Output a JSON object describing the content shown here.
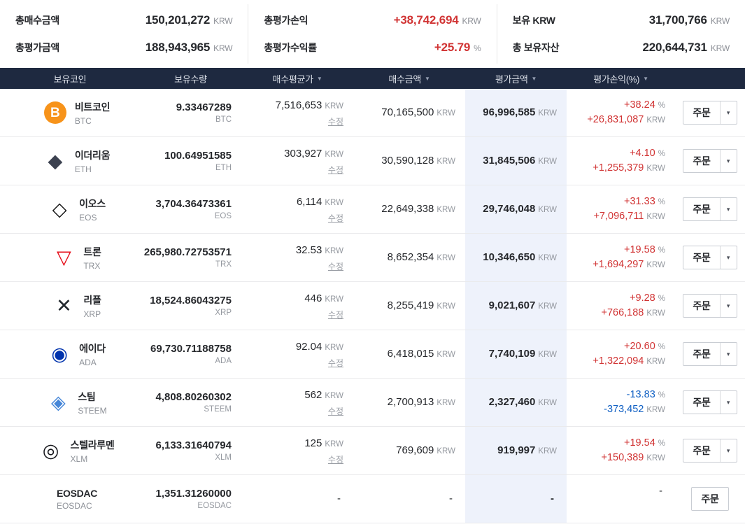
{
  "colors": {
    "profit": "#d13434",
    "loss": "#1261c4",
    "header-bg": "#1e2940",
    "highlight": "#eef2fb"
  },
  "icons": {
    "sort_desc": "▼",
    "order_caret": "▾"
  },
  "summary": {
    "columns": [
      {
        "rows": [
          {
            "label": "총매수금액",
            "value": "150,201,272",
            "unit": "KRW",
            "tone": "normal"
          },
          {
            "label": "총평가금액",
            "value": "188,943,965",
            "unit": "KRW",
            "tone": "normal"
          }
        ]
      },
      {
        "rows": [
          {
            "label": "총평가손익",
            "value": "+38,742,694",
            "unit": "KRW",
            "tone": "profit"
          },
          {
            "label": "총평가수익률",
            "value": "+25.79",
            "unit": "%",
            "tone": "profit"
          }
        ]
      },
      {
        "rows": [
          {
            "label": "보유 KRW",
            "value": "31,700,766",
            "unit": "KRW",
            "tone": "normal"
          },
          {
            "label": "총 보유자산",
            "value": "220,644,731",
            "unit": "KRW",
            "tone": "normal"
          }
        ]
      }
    ]
  },
  "table": {
    "headers": [
      {
        "label": "보유코인",
        "sortable": false
      },
      {
        "label": "보유수량",
        "sortable": false
      },
      {
        "label": "매수평균가",
        "sortable": true
      },
      {
        "label": "매수금액",
        "sortable": true
      },
      {
        "label": "평가금액",
        "sortable": true
      },
      {
        "label": "평가손익(%)",
        "sortable": true
      }
    ],
    "edit_label": "수정",
    "order_label": "주문",
    "rows": [
      {
        "name": "비트코인",
        "symbol": "BTC",
        "icon": {
          "name": "bitcoin-icon",
          "glyph": "B",
          "bg": "#f7931a",
          "color": "#ffffff"
        },
        "quantity": "9.33467289",
        "quantity_unit": "BTC",
        "avg_price": "7,516,653",
        "avg_price_unit": "KRW",
        "buy_amount": "70,165,500",
        "buy_amount_unit": "KRW",
        "eval_amount": "96,996,585",
        "eval_amount_unit": "KRW",
        "pl_percent": "+38.24",
        "pl_percent_unit": "%",
        "pl_amount": "+26,831,087",
        "pl_amount_unit": "KRW",
        "tone": "profit",
        "editable": true,
        "has_dropdown": true
      },
      {
        "name": "이더리움",
        "symbol": "ETH",
        "icon": {
          "name": "ethereum-icon",
          "glyph": "◆",
          "bg": "",
          "color": "#3c4150"
        },
        "quantity": "100.64951585",
        "quantity_unit": "ETH",
        "avg_price": "303,927",
        "avg_price_unit": "KRW",
        "buy_amount": "30,590,128",
        "buy_amount_unit": "KRW",
        "eval_amount": "31,845,506",
        "eval_amount_unit": "KRW",
        "pl_percent": "+4.10",
        "pl_percent_unit": "%",
        "pl_amount": "+1,255,379",
        "pl_amount_unit": "KRW",
        "tone": "profit",
        "editable": true,
        "has_dropdown": true
      },
      {
        "name": "이오스",
        "symbol": "EOS",
        "icon": {
          "name": "eos-icon",
          "glyph": "◇",
          "bg": "",
          "color": "#111111"
        },
        "quantity": "3,704.36473361",
        "quantity_unit": "EOS",
        "avg_price": "6,114",
        "avg_price_unit": "KRW",
        "buy_amount": "22,649,338",
        "buy_amount_unit": "KRW",
        "eval_amount": "29,746,048",
        "eval_amount_unit": "KRW",
        "pl_percent": "+31.33",
        "pl_percent_unit": "%",
        "pl_amount": "+7,096,711",
        "pl_amount_unit": "KRW",
        "tone": "profit",
        "editable": true,
        "has_dropdown": true
      },
      {
        "name": "트론",
        "symbol": "TRX",
        "icon": {
          "name": "tron-icon",
          "glyph": "▽",
          "bg": "",
          "color": "#e50915"
        },
        "quantity": "265,980.72753571",
        "quantity_unit": "TRX",
        "avg_price": "32.53",
        "avg_price_unit": "KRW",
        "buy_amount": "8,652,354",
        "buy_amount_unit": "KRW",
        "eval_amount": "10,346,650",
        "eval_amount_unit": "KRW",
        "pl_percent": "+19.58",
        "pl_percent_unit": "%",
        "pl_amount": "+1,694,297",
        "pl_amount_unit": "KRW",
        "tone": "profit",
        "editable": true,
        "has_dropdown": true
      },
      {
        "name": "리플",
        "symbol": "XRP",
        "icon": {
          "name": "ripple-icon",
          "glyph": "✕",
          "bg": "",
          "color": "#23292f"
        },
        "quantity": "18,524.86043275",
        "quantity_unit": "XRP",
        "avg_price": "446",
        "avg_price_unit": "KRW",
        "buy_amount": "8,255,419",
        "buy_amount_unit": "KRW",
        "eval_amount": "9,021,607",
        "eval_amount_unit": "KRW",
        "pl_percent": "+9.28",
        "pl_percent_unit": "%",
        "pl_amount": "+766,188",
        "pl_amount_unit": "KRW",
        "tone": "profit",
        "editable": true,
        "has_dropdown": true
      },
      {
        "name": "에이다",
        "symbol": "ADA",
        "icon": {
          "name": "cardano-icon",
          "glyph": "◉",
          "bg": "",
          "color": "#0033ad"
        },
        "quantity": "69,730.71188758",
        "quantity_unit": "ADA",
        "avg_price": "92.04",
        "avg_price_unit": "KRW",
        "buy_amount": "6,418,015",
        "buy_amount_unit": "KRW",
        "eval_amount": "7,740,109",
        "eval_amount_unit": "KRW",
        "pl_percent": "+20.60",
        "pl_percent_unit": "%",
        "pl_amount": "+1,322,094",
        "pl_amount_unit": "KRW",
        "tone": "profit",
        "editable": true,
        "has_dropdown": true
      },
      {
        "name": "스팀",
        "symbol": "STEEM",
        "icon": {
          "name": "steem-icon",
          "glyph": "◈",
          "bg": "",
          "color": "#4586d8"
        },
        "quantity": "4,808.80260302",
        "quantity_unit": "STEEM",
        "avg_price": "562",
        "avg_price_unit": "KRW",
        "buy_amount": "2,700,913",
        "buy_amount_unit": "KRW",
        "eval_amount": "2,327,460",
        "eval_amount_unit": "KRW",
        "pl_percent": "-13.83",
        "pl_percent_unit": "%",
        "pl_amount": "-373,452",
        "pl_amount_unit": "KRW",
        "tone": "loss",
        "editable": true,
        "has_dropdown": true
      },
      {
        "name": "스텔라루멘",
        "symbol": "XLM",
        "icon": {
          "name": "stellar-icon",
          "glyph": "◎",
          "bg": "",
          "color": "#14151a"
        },
        "quantity": "6,133.31640794",
        "quantity_unit": "XLM",
        "avg_price": "125",
        "avg_price_unit": "KRW",
        "buy_amount": "769,609",
        "buy_amount_unit": "KRW",
        "eval_amount": "919,997",
        "eval_amount_unit": "KRW",
        "pl_percent": "+19.54",
        "pl_percent_unit": "%",
        "pl_amount": "+150,389",
        "pl_amount_unit": "KRW",
        "tone": "profit",
        "editable": true,
        "has_dropdown": true
      },
      {
        "name": "EOSDAC",
        "symbol": "EOSDAC",
        "icon": null,
        "quantity": "1,351.31260000",
        "quantity_unit": "EOSDAC",
        "avg_price": "-",
        "avg_price_unit": "",
        "buy_amount": "-",
        "buy_amount_unit": "",
        "eval_amount": "-",
        "eval_amount_unit": "",
        "pl_percent": "-",
        "pl_percent_unit": "",
        "pl_amount": "",
        "pl_amount_unit": "",
        "tone": "none",
        "editable": false,
        "has_dropdown": false
      }
    ]
  }
}
